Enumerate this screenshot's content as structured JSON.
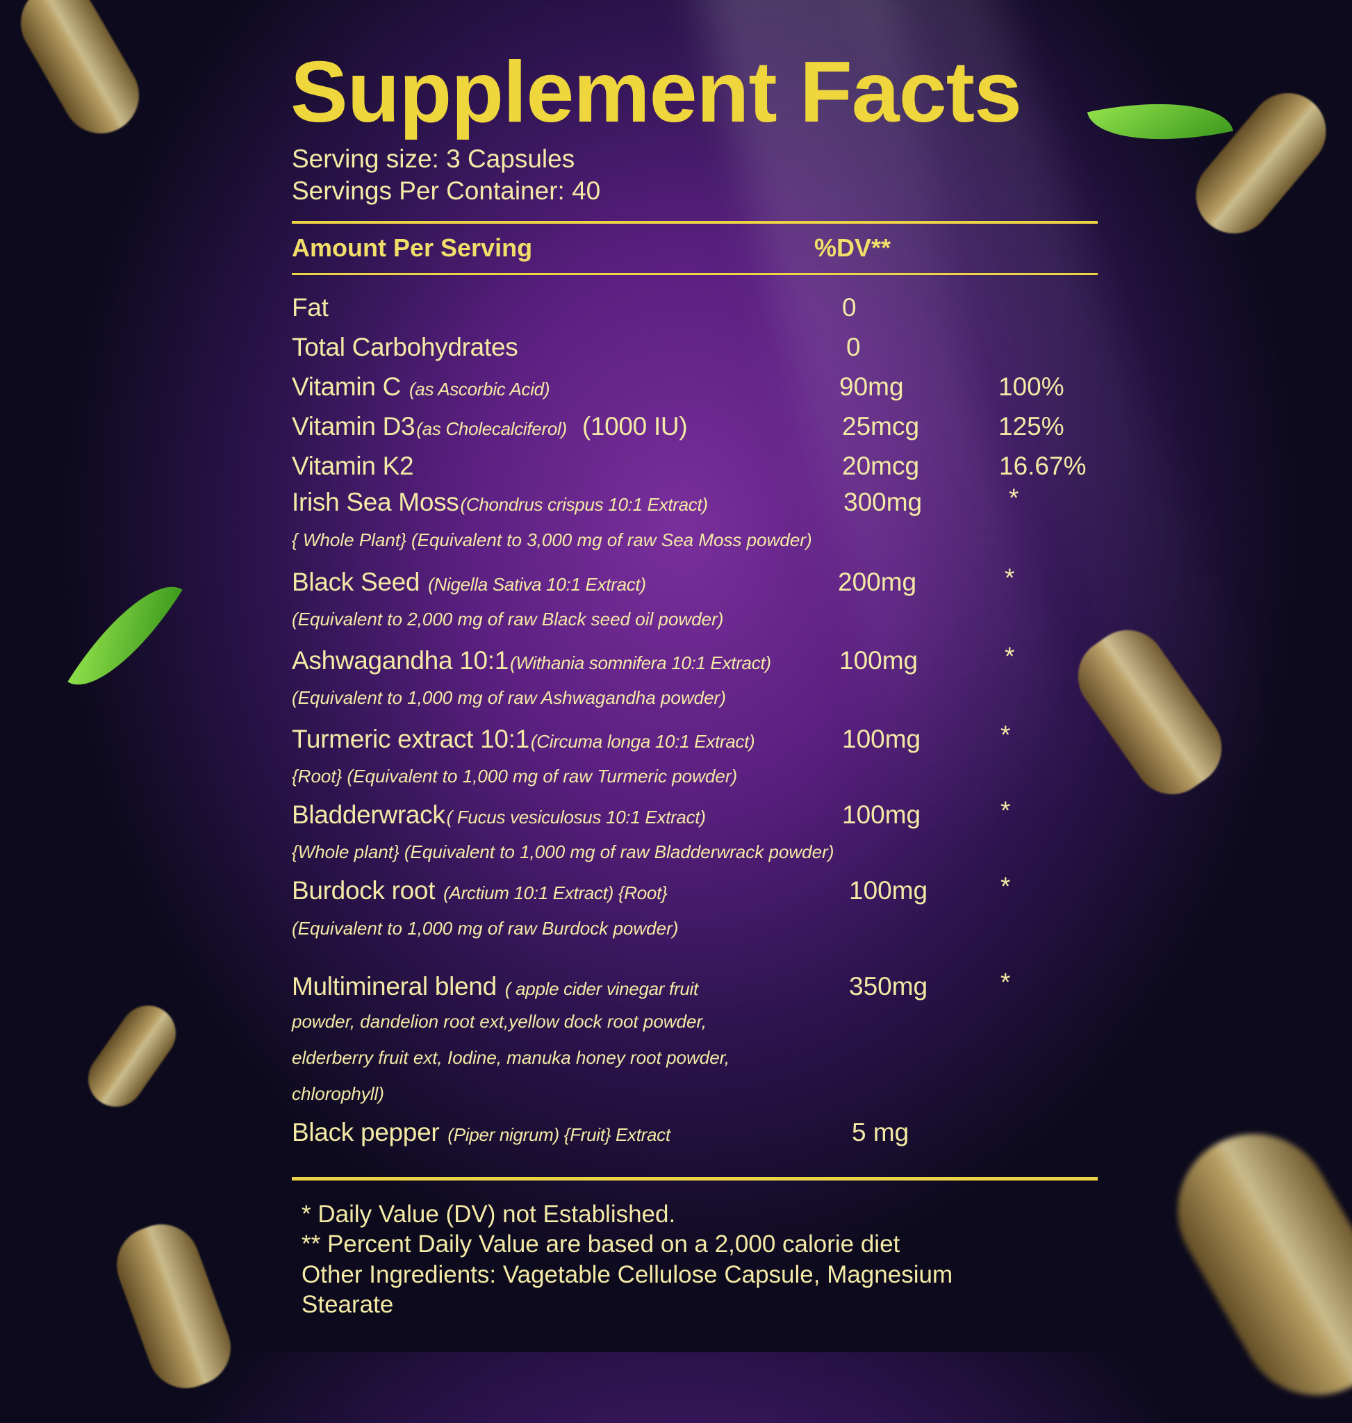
{
  "title": "Supplement Facts",
  "serving_size": "Serving size: 3 Capsules",
  "servings_per_container": "Servings Per Container: 40",
  "header": {
    "amount": "Amount Per Serving",
    "dv": "%DV**"
  },
  "rows": [
    {
      "name": "Fat",
      "detail": "",
      "amount": "0",
      "dv": ""
    },
    {
      "name": "Total Carbohydrates",
      "detail": "",
      "amount": "0",
      "dv": ""
    },
    {
      "name": "Vitamin C",
      "detail": "(as Ascorbic Acid)",
      "amount": "90mg",
      "dv": "100%"
    },
    {
      "name": "Vitamin D3",
      "detail": "(as Cholecalciferol)",
      "extra": "(1000 IU)",
      "amount": "25mcg",
      "dv": "125%"
    },
    {
      "name": "Vitamin K2",
      "detail": "",
      "amount": "20mcg",
      "dv": "16.67%"
    },
    {
      "name": "Irish Sea Moss",
      "detail": "(Chondrus crispus 10:1 Extract)",
      "sub": "{ Whole Plant}  (Equivalent to 3,000 mg of raw Sea Moss powder)",
      "amount": "300mg",
      "dv": "*"
    },
    {
      "name": "Black Seed",
      "detail": "(Nigella Sativa 10:1 Extract)",
      "sub": "(Equivalent to 2,000 mg of raw Black seed oil powder)",
      "amount": "200mg",
      "dv": "*"
    },
    {
      "name": "Ashwagandha 10:1",
      "detail": "(Withania somnifera 10:1 Extract)",
      "sub": "(Equivalent to 1,000 mg of raw Ashwagandha powder)",
      "amount": "100mg",
      "dv": "*"
    },
    {
      "name": "Turmeric extract 10:1",
      "detail": "(Circuma longa 10:1 Extract)",
      "sub": "{Root} (Equivalent to 1,000 mg of raw Turmeric powder)",
      "amount": "100mg",
      "dv": "*"
    },
    {
      "name": "Bladderwrack",
      "detail": "( Fucus vesiculosus 10:1 Extract)",
      "sub": "{Whole plant} (Equivalent to 1,000 mg of raw Bladderwrack powder)",
      "amount": "100mg",
      "dv": "*"
    },
    {
      "name": "Burdock root",
      "detail": "(Arctium 10:1 Extract) {Root}",
      "sub": "(Equivalent to 1,000 mg of raw Burdock powder)",
      "amount": "100mg",
      "dv": "*"
    },
    {
      "name": "Multimineral blend",
      "detail": "( apple cider vinegar fruit",
      "sub_lines": [
        "powder, dandelion root ext,yellow dock root powder,",
        "elderberry fruit ext, Iodine, manuka honey root powder,",
        "chlorophyll)"
      ],
      "amount": "350mg",
      "dv": "*"
    },
    {
      "name": "Black pepper",
      "detail": "(Piper nigrum) {Fruit} Extract",
      "amount": "5 mg",
      "dv": ""
    }
  ],
  "footer": [
    "* Daily Value (DV) not Established.",
    "** Percent Daily Value are based on a 2,000 calorie diet",
    "Other Ingredients: Vagetable Cellulose Capsule, Magnesium",
    "Stearate"
  ],
  "colors": {
    "title": "#eed63c",
    "text": "#f4eaa6",
    "rule": "#ecd445",
    "background_center": "#7a2f9c",
    "background_edge": "#0c0a1c"
  }
}
